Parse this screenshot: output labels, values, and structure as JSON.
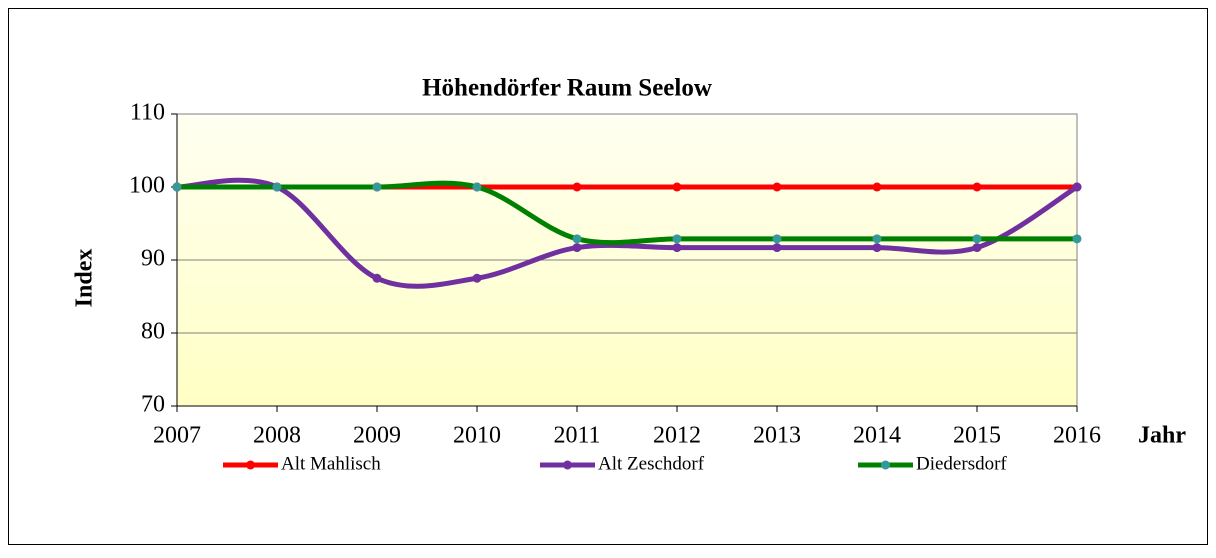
{
  "chart_data": {
    "type": "line",
    "title": "Höhendörfer Raum Seelow",
    "ylabel": "Index",
    "xlabel": "Jahr",
    "categories": [
      "2007",
      "2008",
      "2009",
      "2010",
      "2011",
      "2012",
      "2013",
      "2014",
      "2015",
      "2016"
    ],
    "series": [
      {
        "name": "Alt Mahlisch",
        "color": "#ff0000",
        "marker_color": "#ff0000",
        "values": [
          100,
          100,
          100,
          100,
          100,
          100,
          100,
          100,
          100,
          100
        ]
      },
      {
        "name": "Alt Zeschdorf",
        "color": "#7030a0",
        "marker_color": "#7030a0",
        "values": [
          100,
          100,
          87.5,
          87.5,
          91.7,
          91.7,
          91.7,
          91.7,
          91.7,
          100
        ]
      },
      {
        "name": "Diedersdorf",
        "color": "#008000",
        "marker_color": "#339999",
        "values": [
          100,
          100,
          100,
          100,
          92.9,
          92.9,
          92.9,
          92.9,
          92.9,
          92.9
        ]
      }
    ],
    "ylim": [
      70,
      110
    ],
    "yticks": [
      70,
      80,
      90,
      100,
      110
    ],
    "grid": true,
    "smooth": true,
    "legend": "bottom"
  }
}
